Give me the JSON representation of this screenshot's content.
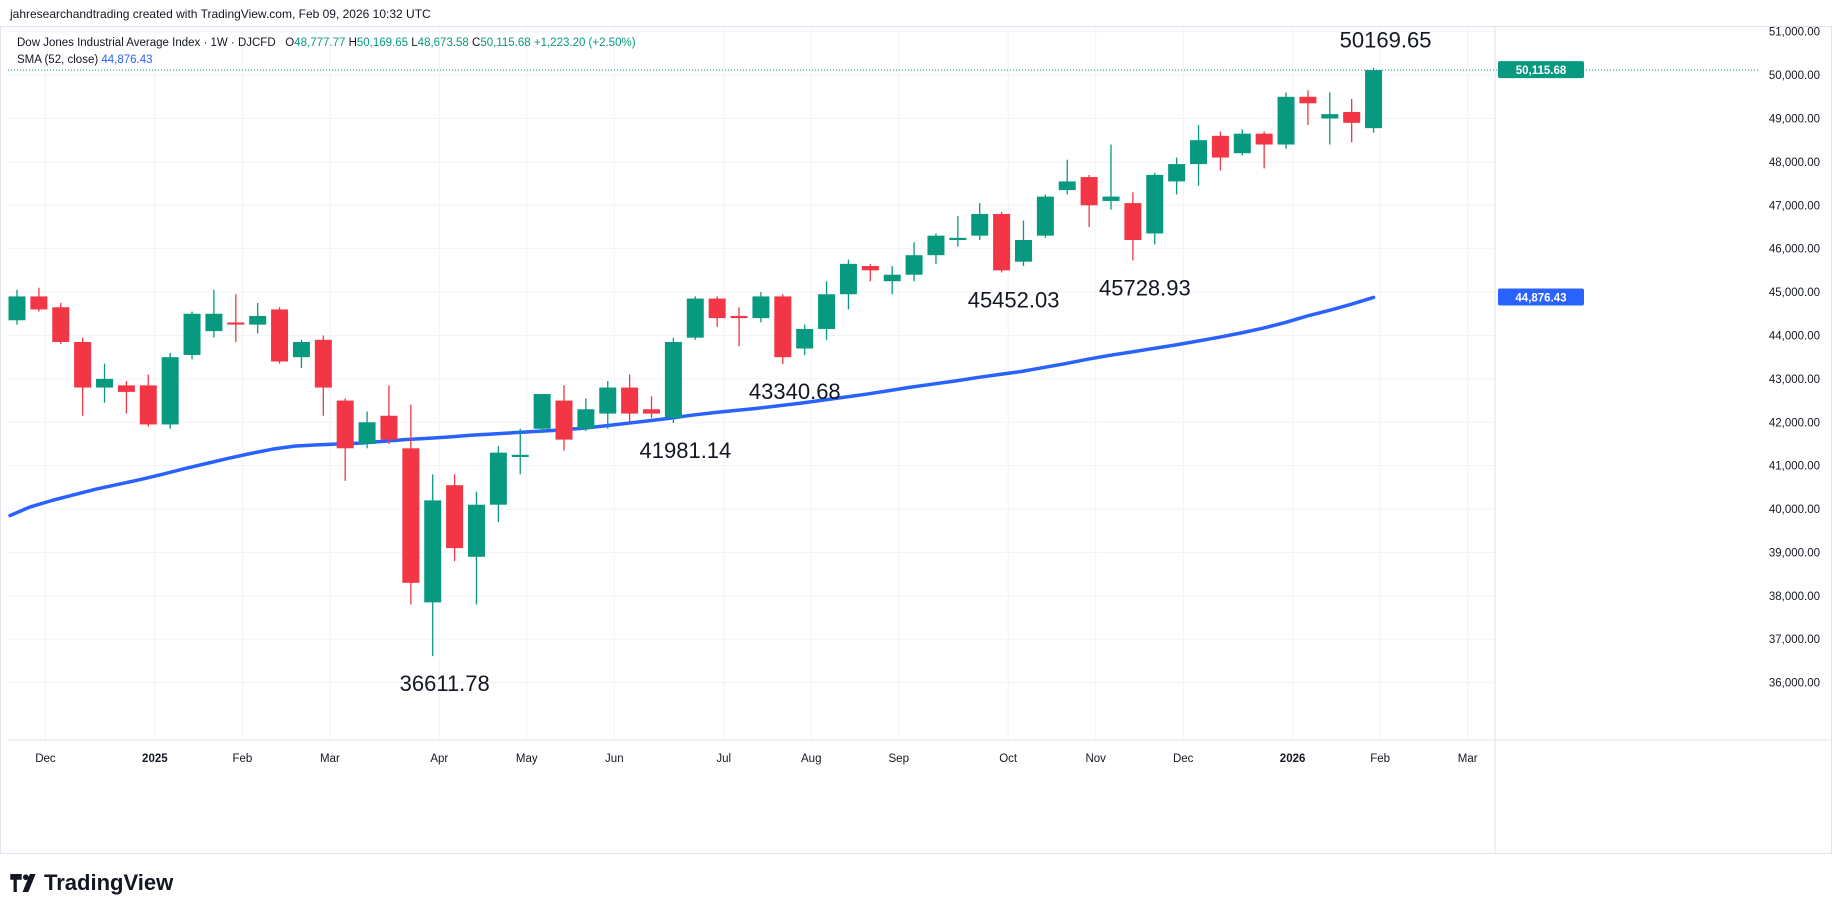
{
  "credit": "jahresearchandtrading created with TradingView.com, Feb 09, 2026 10:32 UTC",
  "legend": {
    "title": "Dow Jones Industrial Average Index · 1W · DJCFD",
    "o_label": "O",
    "o_value": "48,777.77",
    "h_label": "H",
    "h_value": "50,169.65",
    "l_label": "L",
    "l_value": "48,673.58",
    "c_label": "C",
    "c_value": "50,115.68",
    "change": "+1,223.20 (+2.50%)",
    "sma_label": "SMA (52, close)",
    "sma_value": "44,876.43"
  },
  "footer": {
    "brand": "TradingView"
  },
  "colors": {
    "up": "#089981",
    "down": "#f23645",
    "sma": "#2962ff",
    "grid": "#f0f3fa",
    "last_price_line": "#089981"
  },
  "chart_data": {
    "type": "candlestick",
    "title": "Dow Jones Industrial Average Index · 1W · DJCFD",
    "ylim": [
      35600,
      51500
    ],
    "y_ticks": [
      36000,
      37000,
      38000,
      39000,
      40000,
      41000,
      42000,
      43000,
      44000,
      45000,
      46000,
      47000,
      48000,
      49000,
      50000,
      51000
    ],
    "y_tick_labels": [
      "36,000.00",
      "37,000.00",
      "38,000.00",
      "39,000.00",
      "40,000.00",
      "41,000.00",
      "42,000.00",
      "43,000.00",
      "44,000.00",
      "45,000.00",
      "46,000.00",
      "47,000.00",
      "48,000.00",
      "49,000.00",
      "50,000.00",
      "51,000.00"
    ],
    "x_ticks": [
      {
        "label": "Dec",
        "i": 1.3,
        "bold": false
      },
      {
        "label": "2025",
        "i": 6.3,
        "bold": true
      },
      {
        "label": "Feb",
        "i": 10.3,
        "bold": false
      },
      {
        "label": "Mar",
        "i": 14.3,
        "bold": false
      },
      {
        "label": "Apr",
        "i": 19.3,
        "bold": false
      },
      {
        "label": "May",
        "i": 23.3,
        "bold": false
      },
      {
        "label": "Jun",
        "i": 27.3,
        "bold": false
      },
      {
        "label": "Jul",
        "i": 32.3,
        "bold": false
      },
      {
        "label": "Aug",
        "i": 36.3,
        "bold": false
      },
      {
        "label": "Sep",
        "i": 40.3,
        "bold": false
      },
      {
        "label": "Oct",
        "i": 45.3,
        "bold": false
      },
      {
        "label": "Nov",
        "i": 49.3,
        "bold": false
      },
      {
        "label": "Dec",
        "i": 53.3,
        "bold": false
      },
      {
        "label": "2026",
        "i": 58.3,
        "bold": true
      },
      {
        "label": "Feb",
        "i": 62.3,
        "bold": false
      },
      {
        "label": "Mar",
        "i": 66.3,
        "bold": false
      }
    ],
    "candles": [
      {
        "o": 44350,
        "h": 45050,
        "l": 44250,
        "c": 44900
      },
      {
        "o": 44900,
        "h": 45100,
        "l": 44550,
        "c": 44600
      },
      {
        "o": 44650,
        "h": 44750,
        "l": 43800,
        "c": 43850
      },
      {
        "o": 43850,
        "h": 43950,
        "l": 42150,
        "c": 42800
      },
      {
        "o": 42800,
        "h": 43350,
        "l": 42450,
        "c": 43000
      },
      {
        "o": 42850,
        "h": 42950,
        "l": 42200,
        "c": 42700
      },
      {
        "o": 42850,
        "h": 43100,
        "l": 41900,
        "c": 41950
      },
      {
        "o": 41950,
        "h": 43600,
        "l": 41850,
        "c": 43500
      },
      {
        "o": 43550,
        "h": 44550,
        "l": 43450,
        "c": 44500
      },
      {
        "o": 44100,
        "h": 45050,
        "l": 43950,
        "c": 44500
      },
      {
        "o": 44300,
        "h": 44950,
        "l": 43850,
        "c": 44250
      },
      {
        "o": 44250,
        "h": 44750,
        "l": 44050,
        "c": 44450
      },
      {
        "o": 44600,
        "h": 44650,
        "l": 43350,
        "c": 43400
      },
      {
        "o": 43500,
        "h": 43900,
        "l": 43250,
        "c": 43850
      },
      {
        "o": 43900,
        "h": 44000,
        "l": 42150,
        "c": 42800
      },
      {
        "o": 42500,
        "h": 42550,
        "l": 40650,
        "c": 41400
      },
      {
        "o": 41500,
        "h": 42250,
        "l": 41400,
        "c": 42000
      },
      {
        "o": 42150,
        "h": 42850,
        "l": 41500,
        "c": 41600
      },
      {
        "o": 41400,
        "h": 42400,
        "l": 37800,
        "c": 38300
      },
      {
        "o": 37850,
        "h": 40800,
        "l": 36611.78,
        "c": 40200
      },
      {
        "o": 40550,
        "h": 40800,
        "l": 38800,
        "c": 39100
      },
      {
        "o": 38900,
        "h": 40400,
        "l": 37800,
        "c": 40100
      },
      {
        "o": 40100,
        "h": 41450,
        "l": 39700,
        "c": 41300
      },
      {
        "o": 41200,
        "h": 41850,
        "l": 40800,
        "c": 41250
      },
      {
        "o": 41850,
        "h": 42650,
        "l": 41750,
        "c": 42650
      },
      {
        "o": 42500,
        "h": 42850,
        "l": 41350,
        "c": 41600
      },
      {
        "o": 41850,
        "h": 42550,
        "l": 41800,
        "c": 42300
      },
      {
        "o": 42200,
        "h": 42950,
        "l": 41850,
        "c": 42800
      },
      {
        "o": 42800,
        "h": 43100,
        "l": 42000,
        "c": 42200
      },
      {
        "o": 42300,
        "h": 42600,
        "l": 42100,
        "c": 42200
      },
      {
        "o": 42100,
        "h": 43950,
        "l": 41981.14,
        "c": 43850
      },
      {
        "o": 43950,
        "h": 44900,
        "l": 43900,
        "c": 44850
      },
      {
        "o": 44850,
        "h": 44900,
        "l": 44200,
        "c": 44400
      },
      {
        "o": 44450,
        "h": 44650,
        "l": 43750,
        "c": 44400
      },
      {
        "o": 44400,
        "h": 45000,
        "l": 44300,
        "c": 44900
      },
      {
        "o": 44900,
        "h": 44950,
        "l": 43340.68,
        "c": 43500
      },
      {
        "o": 43700,
        "h": 44250,
        "l": 43550,
        "c": 44150
      },
      {
        "o": 44150,
        "h": 45250,
        "l": 43900,
        "c": 44950
      },
      {
        "o": 44950,
        "h": 45750,
        "l": 44600,
        "c": 45650
      },
      {
        "o": 45600,
        "h": 45650,
        "l": 45250,
        "c": 45500
      },
      {
        "o": 45250,
        "h": 45600,
        "l": 44950,
        "c": 45400
      },
      {
        "o": 45400,
        "h": 46150,
        "l": 45250,
        "c": 45850
      },
      {
        "o": 45850,
        "h": 46350,
        "l": 45650,
        "c": 46300
      },
      {
        "o": 46200,
        "h": 46750,
        "l": 46050,
        "c": 46250
      },
      {
        "o": 46300,
        "h": 47050,
        "l": 46200,
        "c": 46800
      },
      {
        "o": 46800,
        "h": 46850,
        "l": 45452.03,
        "c": 45500
      },
      {
        "o": 45700,
        "h": 46650,
        "l": 45600,
        "c": 46200
      },
      {
        "o": 46300,
        "h": 47250,
        "l": 46250,
        "c": 47200
      },
      {
        "o": 47350,
        "h": 48050,
        "l": 47250,
        "c": 47550
      },
      {
        "o": 47650,
        "h": 47700,
        "l": 46500,
        "c": 47000
      },
      {
        "o": 47100,
        "h": 48400,
        "l": 46900,
        "c": 47200
      },
      {
        "o": 47050,
        "h": 47300,
        "l": 45728.93,
        "c": 46200
      },
      {
        "o": 46350,
        "h": 47750,
        "l": 46100,
        "c": 47700
      },
      {
        "o": 47550,
        "h": 48100,
        "l": 47250,
        "c": 47950
      },
      {
        "o": 47950,
        "h": 48850,
        "l": 47450,
        "c": 48500
      },
      {
        "o": 48600,
        "h": 48700,
        "l": 47800,
        "c": 48100
      },
      {
        "o": 48200,
        "h": 48750,
        "l": 48150,
        "c": 48650
      },
      {
        "o": 48650,
        "h": 48700,
        "l": 47850,
        "c": 48400
      },
      {
        "o": 48400,
        "h": 49600,
        "l": 48300,
        "c": 49500
      },
      {
        "o": 49500,
        "h": 49650,
        "l": 48850,
        "c": 49350
      },
      {
        "o": 49000,
        "h": 49600,
        "l": 48400,
        "c": 49100
      },
      {
        "o": 49150,
        "h": 49450,
        "l": 48450,
        "c": 48900
      },
      {
        "o": 48777.77,
        "h": 50169.65,
        "l": 48673.58,
        "c": 50115.68
      }
    ],
    "sma": [
      39850,
      40050,
      40200,
      40330,
      40460,
      40570,
      40680,
      40800,
      40930,
      41050,
      41170,
      41280,
      41380,
      41450,
      41480,
      41500,
      41520,
      41560,
      41600,
      41630,
      41660,
      41700,
      41730,
      41760,
      41790,
      41820,
      41860,
      41910,
      41970,
      42030,
      42090,
      42160,
      42220,
      42270,
      42320,
      42380,
      42440,
      42510,
      42580,
      42650,
      42730,
      42810,
      42880,
      42950,
      43030,
      43100,
      43170,
      43260,
      43350,
      43450,
      43540,
      43620,
      43700,
      43780,
      43870,
      43960,
      44060,
      44170,
      44300,
      44450,
      44580,
      44720,
      44876.43
    ],
    "annotations": [
      {
        "text": "50169.65",
        "i": 62,
        "v": 50169.65,
        "pos": "above"
      },
      {
        "text": "45728.93",
        "i": 51,
        "v": 45728.93,
        "pos": "below"
      },
      {
        "text": "45452.03",
        "i": 45,
        "v": 45452.03,
        "pos": "below"
      },
      {
        "text": "43340.68",
        "i": 35,
        "v": 43340.68,
        "pos": "below"
      },
      {
        "text": "41981.14",
        "i": 30,
        "v": 41981.14,
        "pos": "below"
      },
      {
        "text": "36611.78",
        "i": 19,
        "v": 36611.78,
        "pos": "below"
      }
    ],
    "last_price": {
      "value": 50115.68,
      "label": "50,115.68"
    },
    "sma_last": {
      "value": 44876.43,
      "label": "44,876.43"
    },
    "grid": true
  }
}
